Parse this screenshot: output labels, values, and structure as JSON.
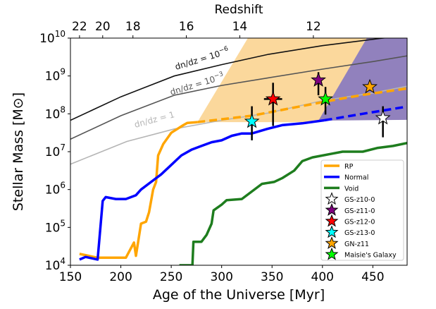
{
  "chart_data": {
    "type": "line",
    "xlabel": "Age of the Universe [Myr]",
    "ylabel": "Stellar Mass [M⊙]",
    "top_xlabel": "Redshift",
    "xlim": [
      150,
      484
    ],
    "ylim": [
      10000,
      10000000000
    ],
    "yscale": "log",
    "x_ticks": [
      "150",
      "200",
      "250",
      "300",
      "350",
      "400",
      "450"
    ],
    "x_tick_values": [
      150,
      200,
      250,
      300,
      350,
      400,
      450
    ],
    "y_ticks": [
      {
        "base": "10",
        "exp": "4",
        "v": 4
      },
      {
        "base": "10",
        "exp": "5",
        "v": 5
      },
      {
        "base": "10",
        "exp": "6",
        "v": 6
      },
      {
        "base": "10",
        "exp": "7",
        "v": 7
      },
      {
        "base": "10",
        "exp": "8",
        "v": 8
      },
      {
        "base": "10",
        "exp": "9",
        "v": 9
      },
      {
        "base": "10",
        "exp": "10",
        "v": 10
      }
    ],
    "top_ticks": [
      {
        "label": "22",
        "age": 159
      },
      {
        "label": "20",
        "age": 182
      },
      {
        "label": "18",
        "age": 212
      },
      {
        "label": "16",
        "age": 265
      },
      {
        "label": "14",
        "age": 318
      },
      {
        "label": "12",
        "age": 391
      }
    ],
    "grid": false,
    "legend_position": "lower-right",
    "bands": [
      {
        "color": "#fbd89c",
        "log_mass_polygon": [
          [
            276,
            7.78
          ],
          [
            326,
            10
          ],
          [
            444,
            10
          ],
          [
            396,
            7.78
          ]
        ]
      },
      {
        "color": "#9181bd",
        "log_mass_polygon": [
          [
            396,
            7.82
          ],
          [
            444,
            10
          ],
          [
            484,
            10
          ],
          [
            484,
            7.84
          ]
        ]
      }
    ],
    "reference_curves": [
      {
        "label": "dn/dz = 10",
        "exp": "−6",
        "color": "#111111",
        "points": [
          [
            150,
            7.83
          ],
          [
            200,
            8.45
          ],
          [
            253,
            9.0
          ],
          [
            300,
            9.3
          ],
          [
            346,
            9.57
          ],
          [
            400,
            9.8
          ],
          [
            457,
            9.99
          ],
          [
            484,
            10.07
          ]
        ]
      },
      {
        "label": "dn/dz = 10",
        "exp": "−3",
        "color": "#555555",
        "points": [
          [
            150,
            7.33
          ],
          [
            200,
            7.95
          ],
          [
            253,
            8.49
          ],
          [
            300,
            8.75
          ],
          [
            346,
            8.95
          ],
          [
            400,
            9.18
          ],
          [
            450,
            9.38
          ],
          [
            484,
            9.53
          ]
        ]
      },
      {
        "label": "dn/dz = 1",
        "exp": "",
        "color": "#b5b5b5",
        "points": [
          [
            150,
            6.67
          ],
          [
            206,
            7.27
          ],
          [
            253,
            7.6
          ],
          [
            300,
            7.83
          ],
          [
            346,
            8.02
          ],
          [
            400,
            8.35
          ],
          [
            450,
            8.55
          ],
          [
            484,
            8.73
          ]
        ]
      }
    ],
    "series": [
      {
        "name": "RP",
        "color": "#ffa500",
        "points": [
          [
            159,
            4.3
          ],
          [
            177,
            4.2
          ],
          [
            205,
            4.2
          ],
          [
            213,
            4.6
          ],
          [
            215,
            4.25
          ],
          [
            220,
            5.1
          ],
          [
            225,
            5.15
          ],
          [
            228,
            5.4
          ],
          [
            232,
            6.0
          ],
          [
            235,
            6.2
          ],
          [
            237,
            6.9
          ],
          [
            242,
            7.2
          ],
          [
            250,
            7.5
          ],
          [
            256,
            7.6
          ],
          [
            262,
            7.7
          ],
          [
            266,
            7.76
          ],
          [
            276,
            7.78
          ]
        ],
        "projection": [
          [
            276,
            7.78
          ],
          [
            330,
            7.95
          ],
          [
            402,
            8.32
          ],
          [
            440,
            8.5
          ],
          [
            484,
            8.67
          ]
        ]
      },
      {
        "name": "Normal",
        "color": "#0000ff",
        "points": [
          [
            159,
            4.15
          ],
          [
            165,
            4.22
          ],
          [
            177,
            4.15
          ],
          [
            182,
            5.7
          ],
          [
            185,
            5.8
          ],
          [
            195,
            5.75
          ],
          [
            205,
            5.75
          ],
          [
            215,
            5.85
          ],
          [
            220,
            6.0
          ],
          [
            230,
            6.2
          ],
          [
            240,
            6.4
          ],
          [
            250,
            6.65
          ],
          [
            260,
            6.9
          ],
          [
            270,
            7.05
          ],
          [
            280,
            7.15
          ],
          [
            290,
            7.25
          ],
          [
            300,
            7.3
          ],
          [
            310,
            7.42
          ],
          [
            320,
            7.48
          ],
          [
            330,
            7.48
          ],
          [
            345,
            7.6
          ],
          [
            360,
            7.7
          ],
          [
            380,
            7.75
          ],
          [
            402,
            7.83
          ]
        ],
        "projection": [
          [
            402,
            7.83
          ],
          [
            440,
            8.0
          ],
          [
            484,
            8.19
          ]
        ]
      },
      {
        "name": "Void",
        "color": "#1e7d1e",
        "points": [
          [
            258,
            4.0
          ],
          [
            271,
            4.0
          ],
          [
            272,
            4.62
          ],
          [
            280,
            4.62
          ],
          [
            285,
            4.8
          ],
          [
            290,
            5.1
          ],
          [
            292,
            5.45
          ],
          [
            300,
            5.6
          ],
          [
            305,
            5.72
          ],
          [
            320,
            5.75
          ],
          [
            330,
            5.95
          ],
          [
            340,
            6.15
          ],
          [
            352,
            6.2
          ],
          [
            360,
            6.3
          ],
          [
            372,
            6.5
          ],
          [
            380,
            6.75
          ],
          [
            390,
            6.85
          ],
          [
            410,
            6.95
          ],
          [
            420,
            7.0
          ],
          [
            440,
            7.0
          ],
          [
            455,
            7.1
          ],
          [
            470,
            7.15
          ],
          [
            484,
            7.23
          ]
        ]
      }
    ],
    "galaxies": [
      {
        "name": "GS-z10-0",
        "color": "#ffffff",
        "age": 460,
        "log_mass": 7.89,
        "log_lo": 7.38,
        "log_hi": 8.2
      },
      {
        "name": "GS-z11-0",
        "color": "#800080",
        "age": 396,
        "log_mass": 8.89,
        "log_lo": 8.49,
        "log_hi": 9.1
      },
      {
        "name": "GS-z12-0",
        "color": "#ff0000",
        "age": 351,
        "log_mass": 8.39,
        "log_lo": 7.68,
        "log_hi": 8.82,
        "age_lo": 342,
        "age_hi": 360
      },
      {
        "name": "GS-z13-0",
        "color": "#00ffff",
        "age": 330,
        "log_mass": 7.8,
        "log_lo": 7.3,
        "log_hi": 8.2
      },
      {
        "name": "GN-z11",
        "color": "#ffa500",
        "age": 447,
        "log_mass": 8.71
      },
      {
        "name": "Maisie's Galaxy",
        "color": "#00ff00",
        "age": 403,
        "log_mass": 8.39,
        "log_lo": 7.98,
        "log_hi": 8.71
      }
    ]
  }
}
